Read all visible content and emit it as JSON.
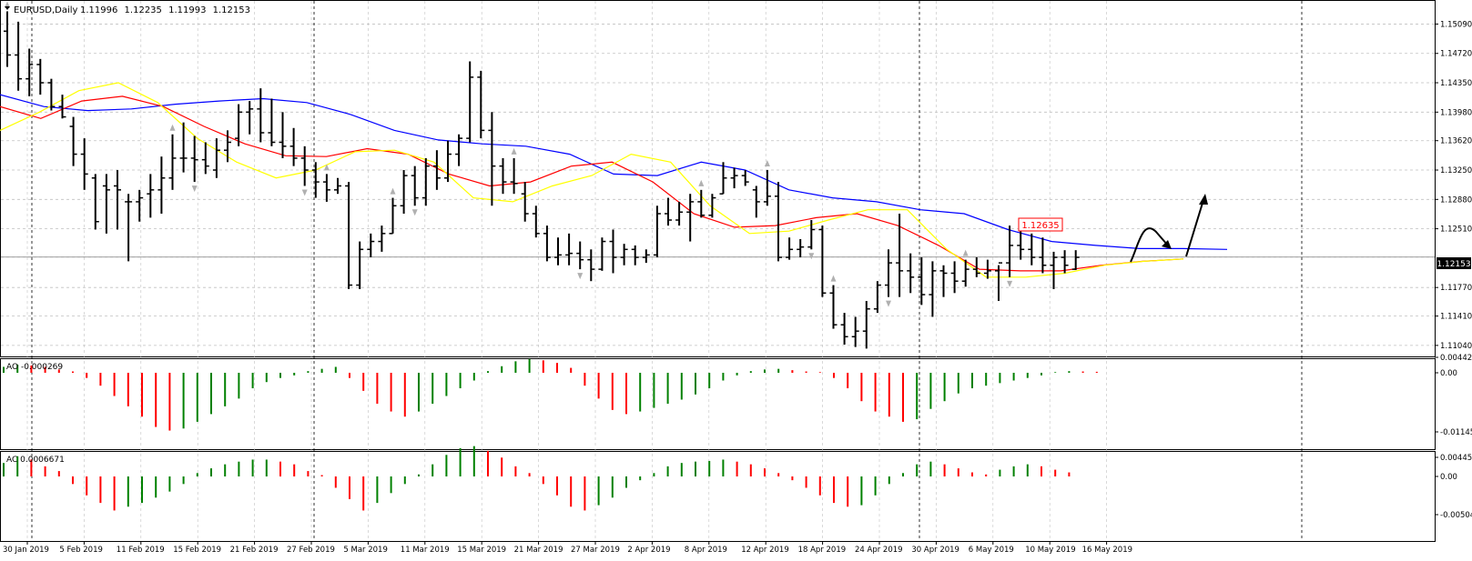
{
  "main_panel": {
    "symbol_title": "EURUSD,Daily",
    "ohlc_values": [
      "1.11996",
      "1.12235",
      "1.11993",
      "1.12153"
    ],
    "current_price_label": "1.12153",
    "price_note": "1.12635",
    "y_ticks": [
      "1.15090",
      "1.14720",
      "1.14350",
      "1.13980",
      "1.13620",
      "1.13250",
      "1.12880",
      "1.12510",
      "1.12153",
      "1.11770",
      "1.11410",
      "1.11040"
    ]
  },
  "ao_panel": {
    "title": "AO -0.000269",
    "y_ticks": [
      "0.004425",
      "0.00",
      "-0.011453"
    ]
  },
  "ac_panel": {
    "title": "AC 0.0006671",
    "y_ticks": [
      "0.0044529",
      "0.00",
      "-0.005047"
    ]
  },
  "x_axis": {
    "labels": [
      "30 Jan 2019",
      "5 Feb 2019",
      "11 Feb 2019",
      "15 Feb 2019",
      "21 Feb 2019",
      "27 Feb 2019",
      "5 Mar 2019",
      "11 Mar 2019",
      "15 Mar 2019",
      "21 Mar 2019",
      "27 Mar 2019",
      "2 Apr 2019",
      "8 Apr 2019",
      "12 Apr 2019",
      "18 Apr 2019",
      "24 Apr 2019",
      "30 Apr 2019",
      "6 May 2019",
      "10 May 2019",
      "16 May 2019"
    ]
  },
  "colors": {
    "background": "#ffffff",
    "bars": "#000000",
    "ma_slow": "#0000ff",
    "ma_mid": "#ff0000",
    "ma_fast": "#ffff00",
    "indicator_up": "#008000",
    "indicator_down": "#ff0000",
    "grid": "#c0c0c0",
    "current_price_bg": "#000000",
    "price_note_border": "#ff0000"
  },
  "chart_data": {
    "type": "ohlc",
    "symbol": "EURUSD",
    "timeframe": "Daily",
    "grid": true,
    "price_range": [
      1.1097,
      1.1537
    ],
    "bars": [
      [
        1.15,
        1.1525,
        1.1455,
        1.147
      ],
      [
        1.147,
        1.1512,
        1.1425,
        1.144
      ],
      [
        1.144,
        1.1478,
        1.1418,
        1.1458
      ],
      [
        1.1458,
        1.1465,
        1.142,
        1.1435
      ],
      [
        1.1435,
        1.144,
        1.14,
        1.1405
      ],
      [
        1.1405,
        1.142,
        1.139,
        1.1392
      ],
      [
        1.138,
        1.1392,
        1.133,
        1.1345
      ],
      [
        1.1345,
        1.1365,
        1.13,
        1.132
      ],
      [
        1.1315,
        1.132,
        1.125,
        1.126
      ],
      [
        1.1305,
        1.132,
        1.1245,
        1.13
      ],
      [
        1.1305,
        1.1325,
        1.125,
        1.13
      ],
      [
        1.1285,
        1.1295,
        1.121,
        1.1285
      ],
      [
        1.1285,
        1.13,
        1.126,
        1.129
      ],
      [
        1.1295,
        1.132,
        1.1265,
        1.13
      ],
      [
        1.13,
        1.1342,
        1.127,
        1.1315
      ],
      [
        1.1315,
        1.137,
        1.13,
        1.134
      ],
      [
        1.134,
        1.1385,
        1.1322,
        1.134
      ],
      [
        1.134,
        1.1368,
        1.131,
        1.1338
      ],
      [
        1.1338,
        1.136,
        1.132,
        1.133
      ],
      [
        1.1325,
        1.1365,
        1.1315,
        1.135
      ],
      [
        1.135,
        1.1375,
        1.1335,
        1.136
      ],
      [
        1.1365,
        1.1408,
        1.1355,
        1.1398
      ],
      [
        1.1398,
        1.1412,
        1.137,
        1.1402
      ],
      [
        1.1402,
        1.1428,
        1.136,
        1.1372
      ],
      [
        1.1372,
        1.1415,
        1.1355,
        1.136
      ],
      [
        1.136,
        1.1398,
        1.134,
        1.1355
      ],
      [
        1.1355,
        1.1378,
        1.133,
        1.134
      ],
      [
        1.134,
        1.1355,
        1.1305,
        1.1325
      ],
      [
        1.1325,
        1.1335,
        1.129,
        1.131
      ],
      [
        1.131,
        1.132,
        1.1285,
        1.13
      ],
      [
        1.13,
        1.1315,
        1.1295,
        1.1305
      ],
      [
        1.1305,
        1.131,
        1.1175,
        1.118
      ],
      [
        1.118,
        1.1235,
        1.1175,
        1.1225
      ],
      [
        1.1225,
        1.1245,
        1.1215,
        1.1235
      ],
      [
        1.1235,
        1.1255,
        1.1222,
        1.1245
      ],
      [
        1.1245,
        1.129,
        1.1245,
        1.128
      ],
      [
        1.128,
        1.1325,
        1.127,
        1.1318
      ],
      [
        1.1318,
        1.133,
        1.128,
        1.129
      ],
      [
        1.129,
        1.134,
        1.128,
        1.133
      ],
      [
        1.133,
        1.135,
        1.13,
        1.1315
      ],
      [
        1.1315,
        1.1362,
        1.131,
        1.1345
      ],
      [
        1.1345,
        1.137,
        1.133,
        1.1365
      ],
      [
        1.1365,
        1.1462,
        1.136,
        1.1442
      ],
      [
        1.1442,
        1.145,
        1.1365,
        1.1375
      ],
      [
        1.1375,
        1.1398,
        1.128,
        1.133
      ],
      [
        1.133,
        1.134,
        1.1295,
        1.131
      ],
      [
        1.131,
        1.134,
        1.1295,
        1.1308
      ],
      [
        1.1295,
        1.131,
        1.126,
        1.127
      ],
      [
        1.127,
        1.128,
        1.124,
        1.1245
      ],
      [
        1.1245,
        1.1255,
        1.121,
        1.1215
      ],
      [
        1.1215,
        1.124,
        1.1205,
        1.1218
      ],
      [
        1.1218,
        1.1245,
        1.1205,
        1.122
      ],
      [
        1.122,
        1.1235,
        1.12,
        1.1212
      ],
      [
        1.1212,
        1.1225,
        1.1185,
        1.12
      ],
      [
        1.12,
        1.124,
        1.1198,
        1.1235
      ],
      [
        1.1235,
        1.125,
        1.1195,
        1.1215
      ],
      [
        1.1215,
        1.1232,
        1.1205,
        1.1225
      ],
      [
        1.1225,
        1.123,
        1.1205,
        1.1215
      ],
      [
        1.1215,
        1.1225,
        1.1208,
        1.1218
      ],
      [
        1.1218,
        1.128,
        1.1215,
        1.127
      ],
      [
        1.127,
        1.129,
        1.1255,
        1.1262
      ],
      [
        1.1262,
        1.1285,
        1.1255,
        1.1272
      ],
      [
        1.1272,
        1.1295,
        1.1235,
        1.1285
      ],
      [
        1.1285,
        1.13,
        1.1265,
        1.1268
      ],
      [
        1.1268,
        1.1295,
        1.1265,
        1.129
      ],
      [
        1.1295,
        1.1335,
        1.1295,
        1.1315
      ],
      [
        1.1315,
        1.1328,
        1.1302,
        1.1318
      ],
      [
        1.1318,
        1.1325,
        1.1305,
        1.131
      ],
      [
        1.13,
        1.1305,
        1.1265,
        1.1285
      ],
      [
        1.1285,
        1.1325,
        1.128,
        1.1292
      ],
      [
        1.1292,
        1.131,
        1.121,
        1.1215
      ],
      [
        1.1215,
        1.124,
        1.1212,
        1.1225
      ],
      [
        1.1225,
        1.1238,
        1.1215,
        1.1228
      ],
      [
        1.1228,
        1.1262,
        1.1225,
        1.125
      ],
      [
        1.125,
        1.1255,
        1.1165,
        1.117
      ],
      [
        1.117,
        1.118,
        1.1125,
        1.113
      ],
      [
        1.113,
        1.1145,
        1.1105,
        1.1115
      ],
      [
        1.1115,
        1.114,
        1.1102,
        1.1122
      ],
      [
        1.1122,
        1.116,
        1.11,
        1.115
      ],
      [
        1.115,
        1.1185,
        1.1145,
        1.118
      ],
      [
        1.118,
        1.1225,
        1.1165,
        1.1208
      ],
      [
        1.1208,
        1.127,
        1.1165,
        1.1198
      ],
      [
        1.1198,
        1.122,
        1.117,
        1.119
      ],
      [
        1.119,
        1.1215,
        1.1155,
        1.1168
      ],
      [
        1.1168,
        1.121,
        1.114,
        1.1198
      ],
      [
        1.1198,
        1.1205,
        1.1165,
        1.1195
      ],
      [
        1.1195,
        1.121,
        1.117,
        1.1185
      ],
      [
        1.1185,
        1.1212,
        1.1178,
        1.12
      ],
      [
        1.12,
        1.1215,
        1.119,
        1.1195
      ],
      [
        1.1195,
        1.1212,
        1.1188,
        1.1198
      ],
      [
        1.1198,
        1.1205,
        1.116,
        1.1208
      ],
      [
        1.1208,
        1.1255,
        1.119,
        1.123
      ],
      [
        1.123,
        1.1264,
        1.1212,
        1.1225
      ],
      [
        1.1225,
        1.1245,
        1.1205,
        1.1215
      ],
      [
        1.1215,
        1.124,
        1.1195,
        1.1205
      ],
      [
        1.1205,
        1.1222,
        1.1175,
        1.1215
      ],
      [
        1.1215,
        1.1224,
        1.1195,
        1.1205
      ],
      [
        1.12,
        1.1224,
        1.1199,
        1.1215
      ]
    ],
    "moving_averages": [
      {
        "color": "blue",
        "values": [
          1.142,
          1.1405,
          1.14,
          1.1402,
          1.1408,
          1.1412,
          1.1415,
          1.141,
          1.1395,
          1.1375,
          1.1363,
          1.1358,
          1.1355,
          1.1345,
          1.132,
          1.1318,
          1.1335,
          1.1325,
          1.13,
          1.129,
          1.1285,
          1.1275,
          1.127,
          1.125,
          1.1235,
          1.123,
          1.1226,
          1.1226,
          1.1225
        ]
      },
      {
        "color": "red",
        "values": [
          1.1405,
          1.139,
          1.1412,
          1.1418,
          1.1405,
          1.138,
          1.1358,
          1.1343,
          1.1342,
          1.1352,
          1.1345,
          1.132,
          1.1305,
          1.131,
          1.133,
          1.1335,
          1.131,
          1.127,
          1.1253,
          1.1255,
          1.1265,
          1.127,
          1.1255,
          1.123,
          1.12,
          1.1198,
          1.1198,
          1.1205,
          1.121,
          1.1213
        ]
      },
      {
        "color": "yellow",
        "values": [
          1.1375,
          1.1398,
          1.1425,
          1.1435,
          1.141,
          1.1365,
          1.1335,
          1.1315,
          1.1325,
          1.1348,
          1.135,
          1.1335,
          1.129,
          1.1285,
          1.1305,
          1.1318,
          1.1345,
          1.1335,
          1.128,
          1.1245,
          1.1248,
          1.1262,
          1.1275,
          1.1275,
          1.1225,
          1.119,
          1.119,
          1.1195,
          1.1205,
          1.121,
          1.1213
        ]
      }
    ],
    "fractals": [
      {
        "bar": 15,
        "dir": "up"
      },
      {
        "bar": 29,
        "dir": "up"
      },
      {
        "bar": 35,
        "dir": "up"
      },
      {
        "bar": 46,
        "dir": "up"
      },
      {
        "bar": 63,
        "dir": "up"
      },
      {
        "bar": 69,
        "dir": "up"
      },
      {
        "bar": 75,
        "dir": "up"
      },
      {
        "bar": 87,
        "dir": "up"
      },
      {
        "bar": 0,
        "dir": "up"
      },
      {
        "bar": 17,
        "dir": "down"
      },
      {
        "bar": 27,
        "dir": "down"
      },
      {
        "bar": 37,
        "dir": "down"
      },
      {
        "bar": 52,
        "dir": "down"
      },
      {
        "bar": 73,
        "dir": "down"
      },
      {
        "bar": 80,
        "dir": "down"
      },
      {
        "bar": 91,
        "dir": "down"
      }
    ],
    "ao_values": [
      0.0018,
      0.0025,
      0.0022,
      0.0018,
      0.001,
      0.0004,
      -0.001,
      -0.0025,
      -0.0045,
      -0.0065,
      -0.0085,
      -0.0105,
      -0.0112,
      -0.0108,
      -0.0095,
      -0.008,
      -0.0065,
      -0.005,
      -0.003,
      -0.0018,
      -0.001,
      -0.0005,
      0.0005,
      0.0012,
      0.0018,
      -0.001,
      -0.0035,
      -0.006,
      -0.0075,
      -0.0085,
      -0.0075,
      -0.006,
      -0.0045,
      -0.003,
      -0.0015,
      0.0005,
      0.002,
      0.0035,
      0.0042,
      0.0038,
      0.003,
      0.0015,
      -0.0025,
      -0.005,
      -0.0072,
      -0.008,
      -0.0075,
      -0.0068,
      -0.006,
      -0.0052,
      -0.0042,
      -0.003,
      -0.0015,
      -0.0005,
      0.0005,
      0.001,
      0.0012,
      0.0008,
      0.0004,
      0.0002,
      -0.001,
      -0.003,
      -0.0055,
      -0.0075,
      -0.0085,
      -0.0095,
      -0.009,
      -0.007,
      -0.0055,
      -0.004,
      -0.003,
      -0.0025,
      -0.002,
      -0.0015,
      -0.001,
      -0.0005,
      0.0002,
      0.0005,
      0.0004,
      0.0003
    ],
    "ac_values": [
      0.002,
      0.003,
      0.0025,
      0.0015,
      0.0008,
      -0.001,
      -0.0025,
      -0.0035,
      -0.0045,
      -0.004,
      -0.0035,
      -0.0028,
      -0.002,
      -0.001,
      0.0005,
      0.0012,
      0.0018,
      0.0022,
      0.0025,
      0.0025,
      0.0022,
      0.0018,
      0.0008,
      0.0002,
      -0.0015,
      -0.003,
      -0.0045,
      -0.0035,
      -0.0022,
      -0.001,
      0.0003,
      0.0018,
      0.0032,
      0.0042,
      0.0045,
      0.0038,
      0.0028,
      0.0015,
      0.0005,
      -0.001,
      -0.0025,
      -0.004,
      -0.0045,
      -0.0038,
      -0.0028,
      -0.0015,
      -0.0005,
      0.0005,
      0.0015,
      0.002,
      0.0022,
      0.0023,
      0.0025,
      0.0022,
      0.0018,
      0.0012,
      0.0005,
      -0.0005,
      -0.0015,
      -0.0025,
      -0.0035,
      -0.004,
      -0.0038,
      -0.0025,
      -0.001,
      0.0005,
      0.0018,
      0.0022,
      0.0018,
      0.0012,
      0.0006,
      0.0003,
      0.001,
      0.0015,
      0.0018,
      0.0015,
      0.001,
      0.0006
    ]
  }
}
